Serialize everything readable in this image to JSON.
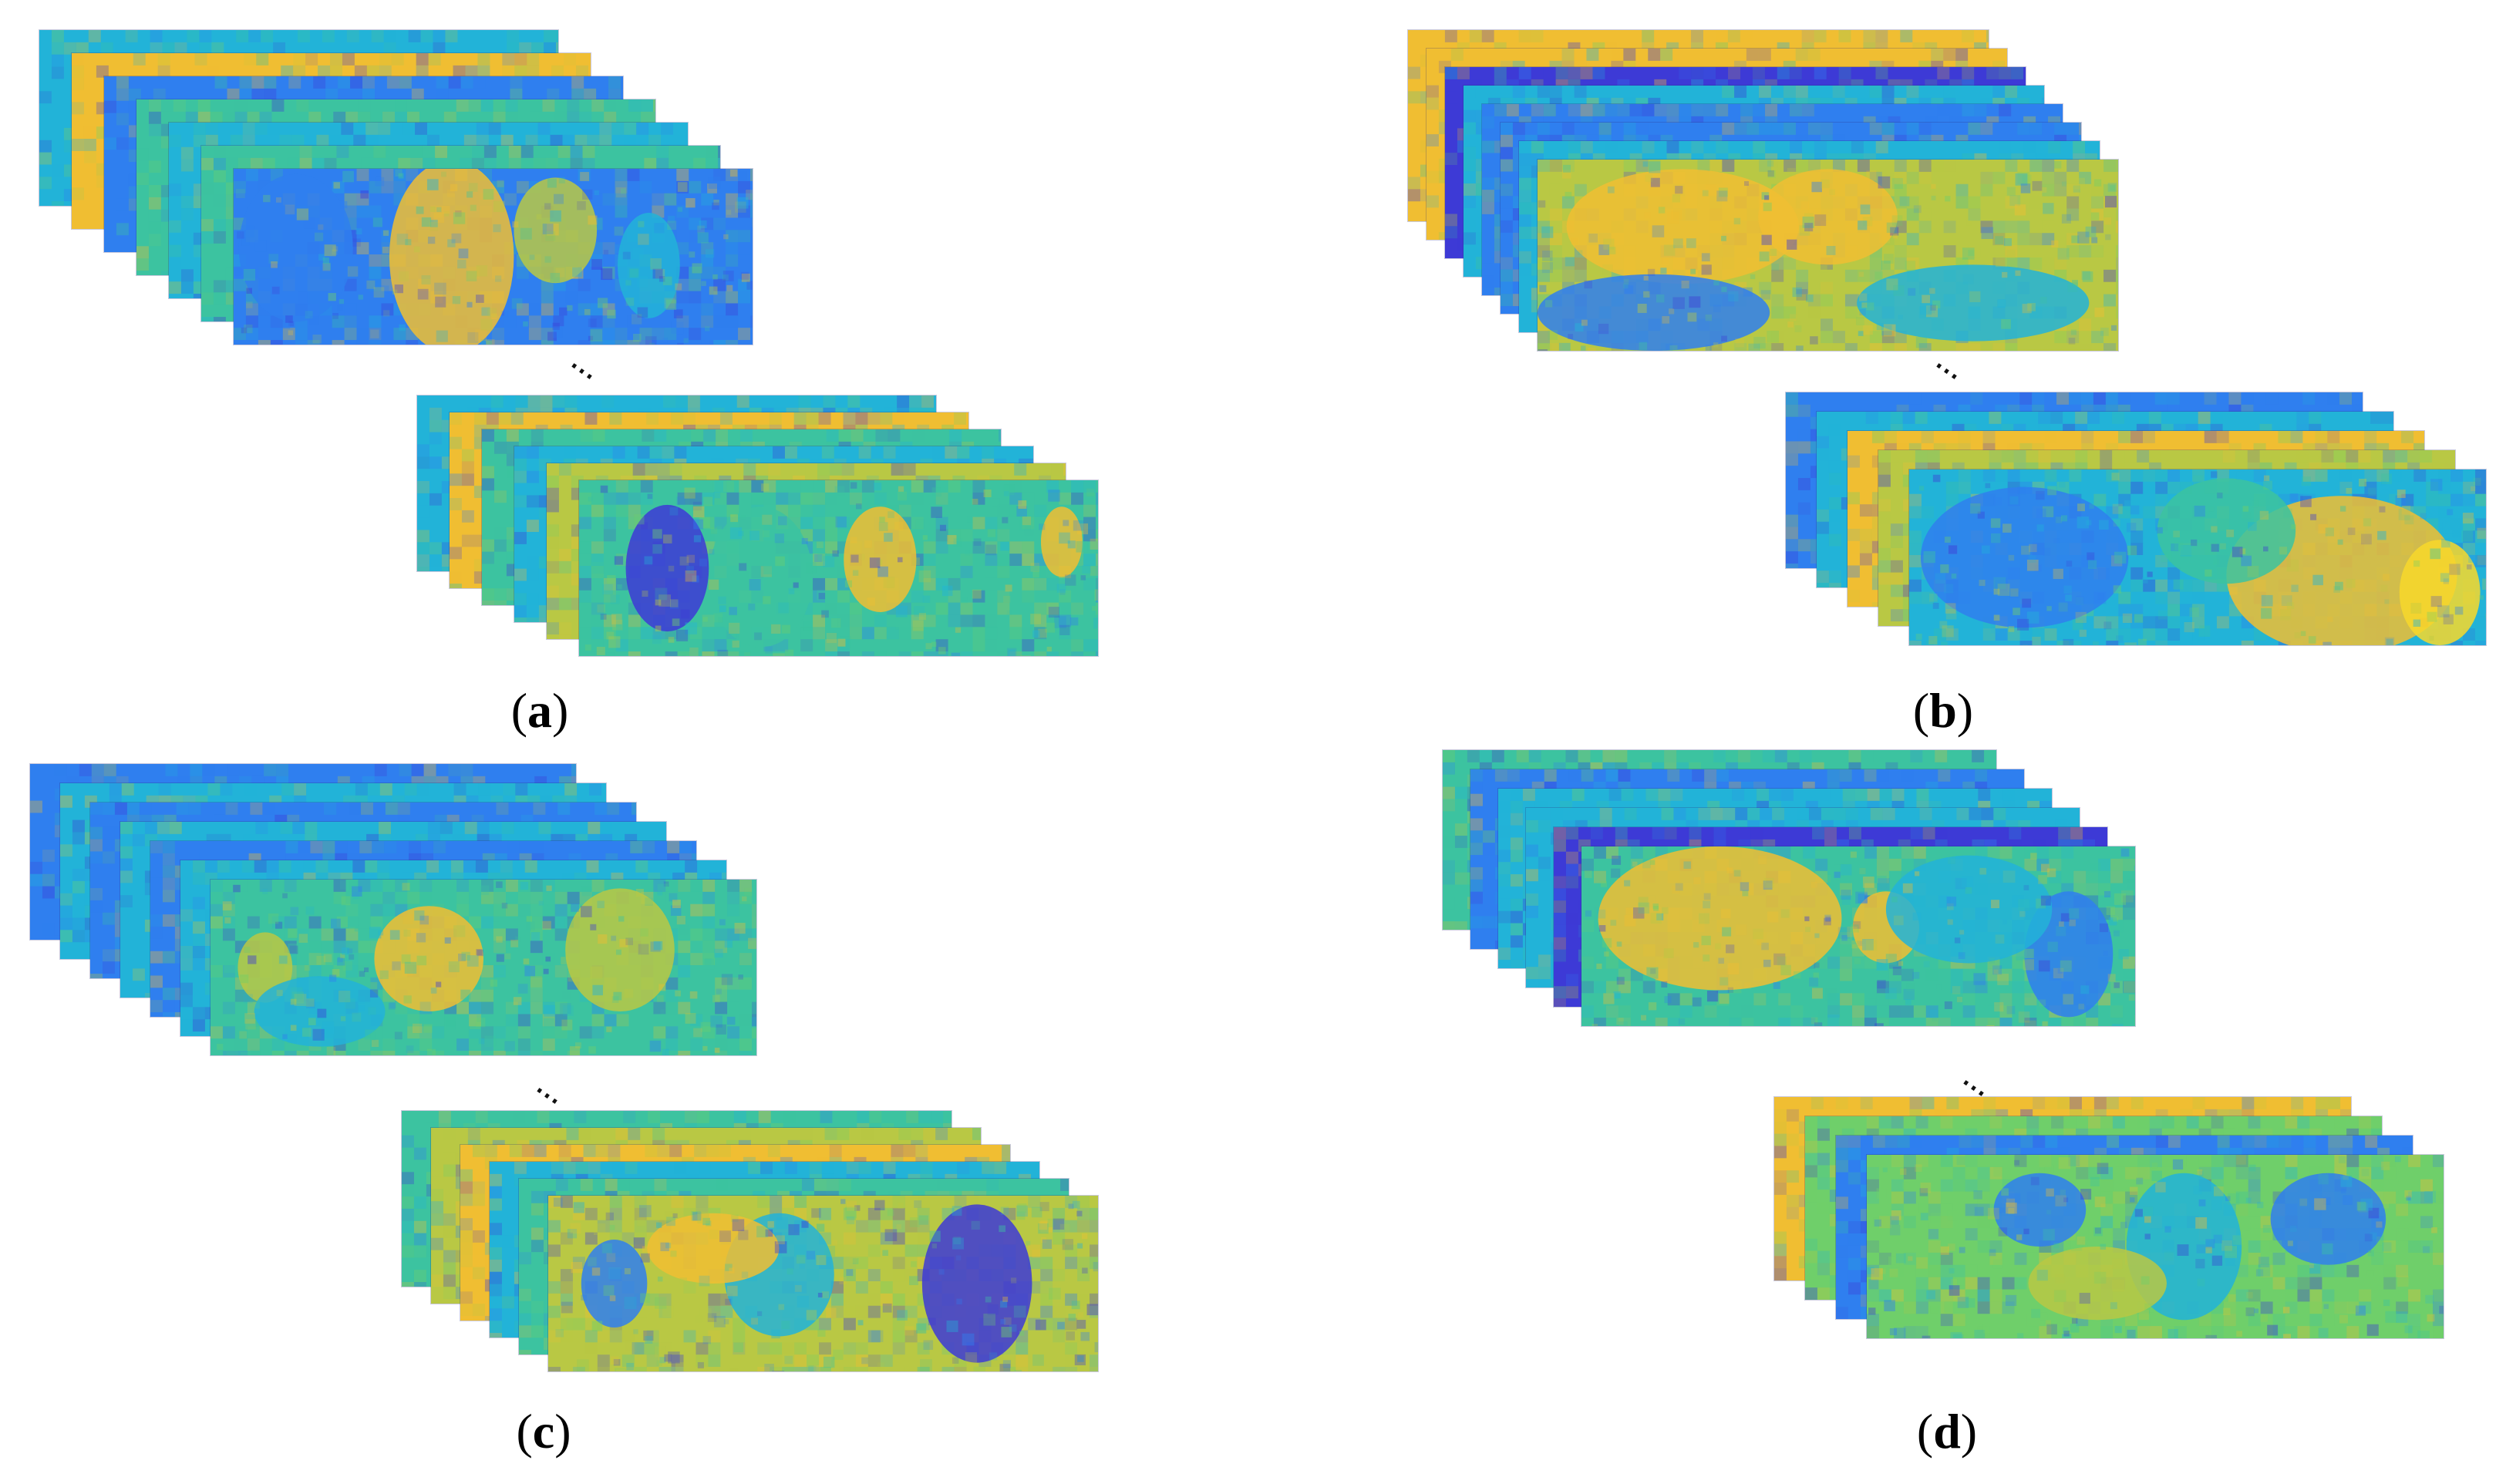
{
  "colors": {
    "dark_blue": "#3d3ad6",
    "blue": "#2f7fef",
    "cyan": "#22b3d8",
    "teal": "#3cc3a0",
    "green": "#6fcf6a",
    "yellow_green": "#b9c844",
    "yellow": "#f0be32",
    "bright_yellow": "#f8d82a"
  },
  "panels": [
    {
      "id": "a",
      "caption_open": "(",
      "caption_letter": "a",
      "caption_close": ")"
    },
    {
      "id": "b",
      "caption_open": "(",
      "caption_letter": "b",
      "caption_close": ")"
    },
    {
      "id": "c",
      "caption_open": "(",
      "caption_letter": "c",
      "caption_close": ")"
    },
    {
      "id": "d",
      "caption_open": "(",
      "caption_letter": "d",
      "caption_close": ")"
    }
  ],
  "ellipsis": "···"
}
